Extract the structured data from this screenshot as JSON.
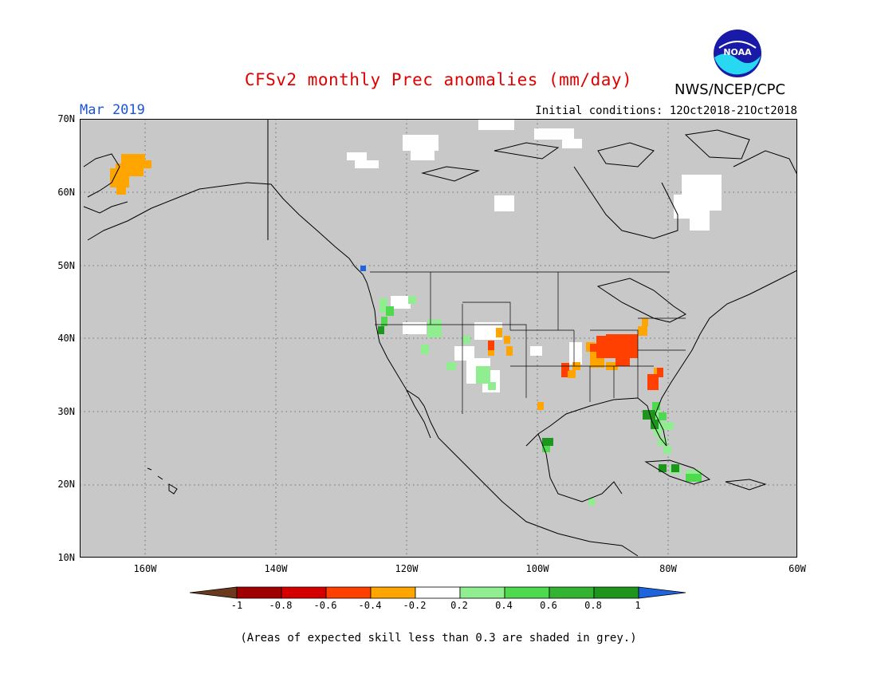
{
  "title": "CFSv2 monthly Prec anomalies (mm/day)",
  "agency": "NWS/NCEP/CPC",
  "logo_text": "NOAA",
  "valid_month": "Mar 2019",
  "init_conditions": "Initial conditions: 12Oct2018-21Oct2018",
  "lat_labels": [
    "70N",
    "60N",
    "50N",
    "40N",
    "30N",
    "20N",
    "10N"
  ],
  "lon_labels": [
    "160W",
    "140W",
    "120W",
    "100W",
    "80W",
    "60W"
  ],
  "colorbar": {
    "labels": [
      "-1",
      "-0.8",
      "-0.6",
      "-0.4",
      "-0.2",
      "0.2",
      "0.4",
      "0.6",
      "0.8",
      "1"
    ],
    "colors": [
      "#6b3a1e",
      "#a00000",
      "#d40000",
      "#ff4000",
      "#ffa500",
      "#ffffff",
      "#90ee90",
      "#4ed94e",
      "#32b432",
      "#1e961e",
      "#1e64dc"
    ]
  },
  "footnote": "(Areas of expected skill less than 0.3 are shaded in grey.)",
  "map_colors": {
    "background": "#c8c8c8",
    "coast": "#000000",
    "grid": "#555555"
  }
}
